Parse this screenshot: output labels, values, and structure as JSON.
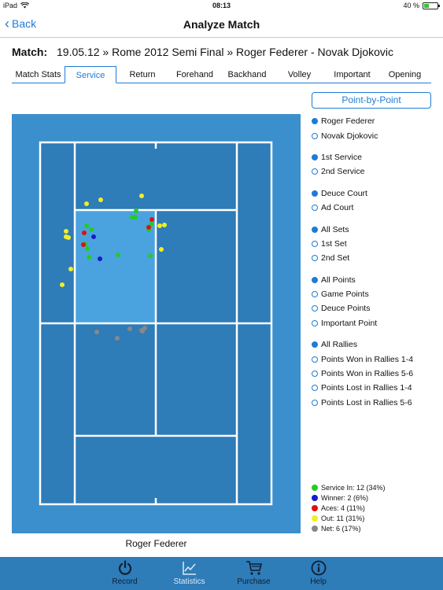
{
  "status_bar": {
    "device": "iPad",
    "time": "08:13",
    "battery": "40 %",
    "battery_level": 0.4
  },
  "nav": {
    "back_label": "Back",
    "title": "Analyze Match"
  },
  "match": {
    "label": "Match:",
    "value": "19.05.12 » Rome 2012 Semi Final » Roger Federer - Novak Djokovic"
  },
  "tabs": [
    {
      "label": "Match Stats",
      "active": false
    },
    {
      "label": "Service",
      "active": true
    },
    {
      "label": "Return",
      "active": false
    },
    {
      "label": "Forehand",
      "active": false
    },
    {
      "label": "Backhand",
      "active": false
    },
    {
      "label": "Volley",
      "active": false
    },
    {
      "label": "Important",
      "active": false
    },
    {
      "label": "Opening",
      "active": false
    }
  ],
  "point_by_point_label": "Point-by-Point",
  "filter_groups": [
    {
      "items": [
        {
          "label": "Roger Federer",
          "selected": true
        },
        {
          "label": "Novak Djokovic",
          "selected": false
        }
      ]
    },
    {
      "items": [
        {
          "label": "1st Service",
          "selected": true
        },
        {
          "label": "2nd Service",
          "selected": false
        }
      ]
    },
    {
      "items": [
        {
          "label": "Deuce Court",
          "selected": true
        },
        {
          "label": "Ad Court",
          "selected": false
        }
      ]
    },
    {
      "items": [
        {
          "label": "All Sets",
          "selected": true
        },
        {
          "label": "1st Set",
          "selected": false
        },
        {
          "label": "2nd Set",
          "selected": false
        }
      ]
    },
    {
      "items": [
        {
          "label": "All Points",
          "selected": true
        },
        {
          "label": "Game Points",
          "selected": false
        },
        {
          "label": "Deuce Points",
          "selected": false
        },
        {
          "label": "Important Point",
          "selected": false
        }
      ]
    },
    {
      "items": [
        {
          "label": "All Rallies",
          "selected": true
        },
        {
          "label": "Points Won in Rallies 1-4",
          "selected": false
        },
        {
          "label": "Points Won in Rallies 5-6",
          "selected": false
        },
        {
          "label": "Points Lost in Rallies 1-4",
          "selected": false
        },
        {
          "label": "Points Lost in Rallies 5-6",
          "selected": false
        }
      ]
    }
  ],
  "legend": [
    {
      "label": "Service In: 12 (34%)",
      "color": "#22cc22"
    },
    {
      "label": "Winner: 2 (6%)",
      "color": "#1a1acc"
    },
    {
      "label": "Aces: 4 (11%)",
      "color": "#dd1111"
    },
    {
      "label": "Out: 11 (31%)",
      "color": "#f2ee22"
    },
    {
      "label": "Net: 6 (17%)",
      "color": "#888888"
    }
  ],
  "court_caption": "Roger Federer",
  "bottom_tabs": [
    {
      "label": "Record",
      "icon": "power-icon",
      "active": false
    },
    {
      "label": "Statistics",
      "icon": "chart-icon",
      "active": true
    },
    {
      "label": "Purchase",
      "icon": "cart-icon",
      "active": false
    },
    {
      "label": "Help",
      "icon": "info-icon",
      "active": false
    }
  ],
  "colors": {
    "accent": "#1f7bd8",
    "court_outer": "#3b8fcc",
    "court_inner": "#2e7cb8",
    "service_box": "#4aa3df",
    "tab_bar": "#2e7cb8"
  }
}
